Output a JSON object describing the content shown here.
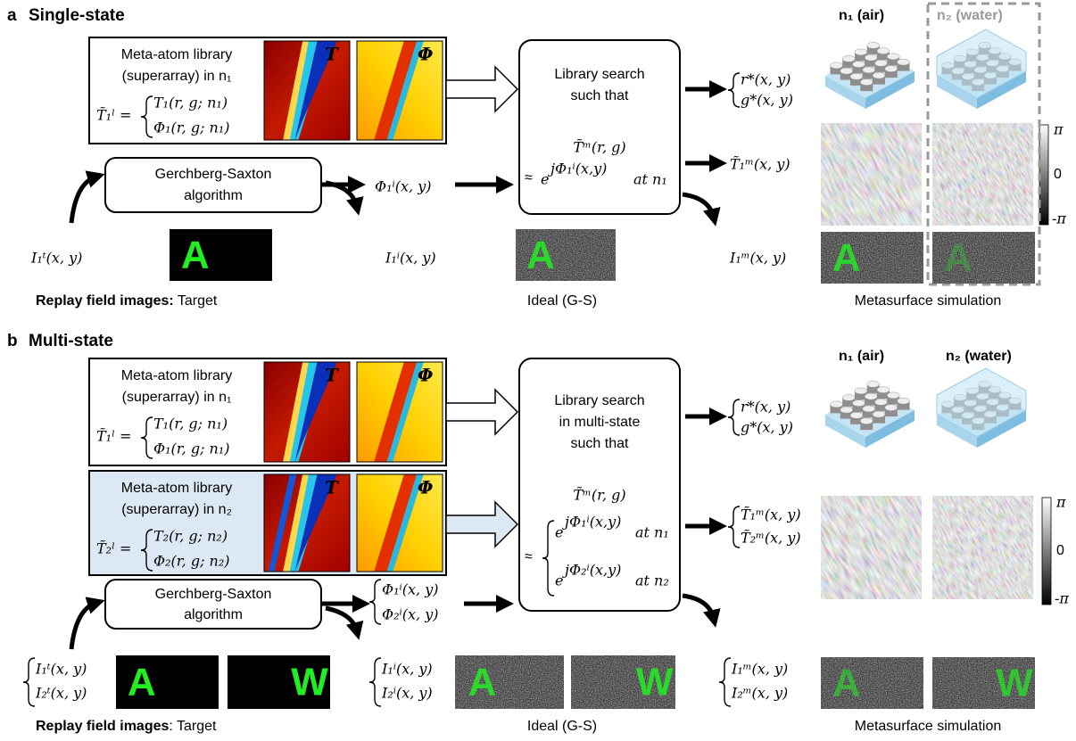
{
  "panel_a": {
    "label": "a",
    "title": "Single-state",
    "library": {
      "lines": [
        "Meta-atom library",
        "(superarray) in n₁"
      ],
      "lhs": "T̃₁ˡ =",
      "cases": [
        "T₁(r, g; n₁)",
        "Φ₁(r, g; n₁)"
      ],
      "maps": [
        "T",
        "Φ"
      ]
    },
    "search": {
      "lines": [
        "Library search",
        "such that"
      ],
      "formula": "T̃ᵐ(r, g)",
      "approx": "≈",
      "exp_base": "e",
      "exponent": "jΦ₁ⁱ(x,y)",
      "condition": "at n₁"
    },
    "gs": [
      "Gerchberg-Saxton",
      "algorithm"
    ],
    "phase_in": "Φ₁ⁱ(x, y)",
    "design": [
      "r*(x, y)",
      "g*(x, y)"
    ],
    "meta_phase": "T̃₁ᵐ(x, y)",
    "states": [
      "n₁ (air)",
      "n₂ (water)"
    ],
    "colorbar": [
      "π",
      "0",
      "-π"
    ],
    "target_label": "I₁ᵗ(x, y)",
    "ideal_label": "I₁ⁱ(x, y)",
    "sim_label": "I₁ᵐ(x, y)",
    "letter": "A",
    "captions": {
      "target_bold": "Replay field images:",
      "target_rest": " Target",
      "ideal": "Ideal (G-S)",
      "sim": "Metasurface simulation"
    }
  },
  "panel_b": {
    "label": "b",
    "title": "Multi-state",
    "libraries": [
      {
        "lines": [
          "Meta-atom library",
          "(superarray) in n₁"
        ],
        "lhs": "T̃₁ˡ =",
        "cases": [
          "T₁(r, g; n₁)",
          "Φ₁(r, g; n₁)"
        ],
        "maps": [
          "T",
          "Φ"
        ]
      },
      {
        "lines": [
          "Meta-atom library",
          "(superarray) in n₂"
        ],
        "lhs": "T̃₂ˡ =",
        "cases": [
          "T₂(r, g; n₂)",
          "Φ₂(r, g; n₂)"
        ],
        "maps": [
          "T",
          "Φ"
        ]
      }
    ],
    "search": {
      "lines": [
        "Library search",
        "in multi-state",
        "such that"
      ],
      "formula": "T̃ᵐ(r, g)",
      "approx": "≈",
      "cases": [
        {
          "exp_base": "e",
          "exponent": "jΦ₁ⁱ(x,y)",
          "condition": "at n₁"
        },
        {
          "exp_base": "e",
          "exponent": "jΦ₂ⁱ(x,y)",
          "condition": "at n₂"
        }
      ]
    },
    "gs": [
      "Gerchberg-Saxton",
      "algorithm"
    ],
    "phase_in": [
      "Φ₁ⁱ(x, y)",
      "Φ₂ⁱ(x, y)"
    ],
    "design": [
      "r*(x, y)",
      "g*(x, y)"
    ],
    "meta_phase": [
      "T̃₁ᵐ(x, y)",
      "T̃₂ᵐ(x, y)"
    ],
    "states": [
      "n₁ (air)",
      "n₂ (water)"
    ],
    "colorbar": [
      "π",
      "0",
      "-π"
    ],
    "target_label": [
      "I₁ᵗ(x, y)",
      "I₂ᵗ(x, y)"
    ],
    "ideal_label": [
      "I₁ⁱ(x, y)",
      "I₂ⁱ(x, y)"
    ],
    "sim_label": [
      "I₁ᵐ(x, y)",
      "I₂ᵐ(x, y)"
    ],
    "letters": [
      "A",
      "W"
    ],
    "captions": {
      "target_bold": "Replay field images",
      "target_rest": ": Target",
      "ideal": "Ideal (G-S)",
      "sim": "Metasurface simulation"
    }
  }
}
